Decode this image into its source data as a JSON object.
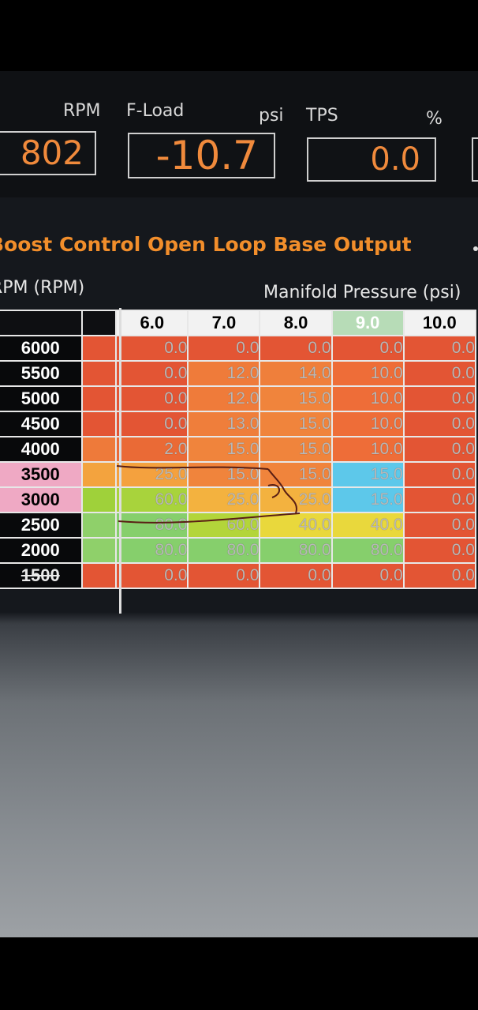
{
  "gauges": {
    "rpm": {
      "label": "RPM",
      "value": "802"
    },
    "fload": {
      "label": "F-Load",
      "unit": "psi",
      "value": "-10.7"
    },
    "tps": {
      "label": "TPS",
      "unit": "%",
      "value": "0.0"
    }
  },
  "map": {
    "title": "Boost Control Open Loop Base Output",
    "row_axis_label": "RPM (RPM)",
    "col_axis_label": "Manifold Pressure (psi)",
    "columns": [
      "6.0",
      "7.0",
      "8.0",
      "9.0",
      "10.0"
    ],
    "selected_column": "9.0",
    "rows": [
      {
        "rpm": "6000",
        "axis_color": "#e35534",
        "cells": [
          "0.0",
          "0.0",
          "0.0",
          "0.0",
          "0.0"
        ],
        "colors": [
          "#e35534",
          "#e35534",
          "#e35534",
          "#e35534",
          "#e35534"
        ]
      },
      {
        "rpm": "5500",
        "axis_color": "#e35534",
        "cells": [
          "0.0",
          "12.0",
          "14.0",
          "10.0",
          "0.0"
        ],
        "colors": [
          "#e35534",
          "#ef7b3a",
          "#ef7f3b",
          "#ee6d38",
          "#e35534"
        ]
      },
      {
        "rpm": "5000",
        "axis_color": "#e35534",
        "cells": [
          "0.0",
          "12.0",
          "15.0",
          "10.0",
          "0.0"
        ],
        "colors": [
          "#e35534",
          "#ef7b3a",
          "#f0843c",
          "#ee6d38",
          "#e35534"
        ]
      },
      {
        "rpm": "4500",
        "axis_color": "#e35534",
        "cells": [
          "0.0",
          "13.0",
          "15.0",
          "10.0",
          "0.0"
        ],
        "colors": [
          "#e35534",
          "#ef7e3b",
          "#f0843c",
          "#ee6d38",
          "#e35534"
        ]
      },
      {
        "rpm": "4000",
        "axis_color": "#ee7a3a",
        "cells": [
          "2.0",
          "15.0",
          "15.0",
          "10.0",
          "0.0"
        ],
        "colors": [
          "#ea6a36",
          "#f0843c",
          "#f0843c",
          "#ee6d38",
          "#e35534"
        ]
      },
      {
        "rpm": "3500",
        "axis_color": "#f3a33e",
        "pink": true,
        "cells": [
          "25.0",
          "15.0",
          "15.0",
          "15.0",
          "0.0"
        ],
        "colors": [
          "#f4a13e",
          "#f0843c",
          "#f0843c",
          "#5dc8ea",
          "#e35534"
        ]
      },
      {
        "rpm": "3000",
        "axis_color": "#9fd13a",
        "pink": true,
        "cells": [
          "60.0",
          "25.0",
          "25.0",
          "15.0",
          "0.0"
        ],
        "colors": [
          "#a8d33c",
          "#f3b23f",
          "#f3b23f",
          "#5dc8ea",
          "#e35534"
        ]
      },
      {
        "rpm": "2500",
        "axis_color": "#8fd06a",
        "cells": [
          "80.0",
          "60.0",
          "40.0",
          "40.0",
          "0.0"
        ],
        "colors": [
          "#86cf6c",
          "#b3d53a",
          "#e9d83c",
          "#e9d83c",
          "#e35534"
        ]
      },
      {
        "rpm": "2000",
        "axis_color": "#8fd06a",
        "cells": [
          "80.0",
          "80.0",
          "80.0",
          "80.0",
          "0.0"
        ],
        "colors": [
          "#86cf6c",
          "#86cf6c",
          "#86cf6c",
          "#86cf6c",
          "#e35534"
        ]
      },
      {
        "rpm": "1500",
        "axis_color": "#e35534",
        "strike": true,
        "cells": [
          "0.0",
          "0.0",
          "0.0",
          "0.0",
          "0.0"
        ],
        "colors": [
          "#e35534",
          "#e35534",
          "#e35534",
          "#e35534",
          "#e35534"
        ]
      }
    ]
  }
}
